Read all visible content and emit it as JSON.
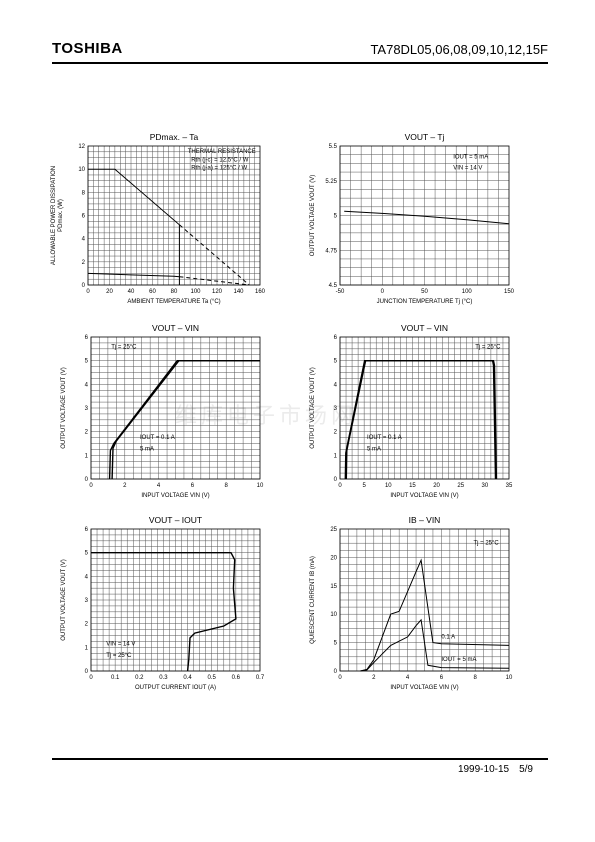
{
  "header": {
    "brand": "TOSHIBA",
    "part_number": "TA78DL05,06,08,09,10,12,15F"
  },
  "footer": {
    "date": "1999-10-15",
    "page": "5/9"
  },
  "watermark": "维库电子市场网",
  "chart_data": [
    {
      "id": "pd",
      "type": "line",
      "title": "PDmax. – Ta",
      "xlabel": "AMBIENT TEMPERATURE Ta (°C)",
      "ylabel_lines": [
        "ALLOWABLE POWER DISSIPATION",
        "PDmax. (W)"
      ],
      "xlim": [
        0,
        160
      ],
      "ylim": [
        0,
        12
      ],
      "xticks": [
        0,
        20,
        40,
        60,
        80,
        100,
        120,
        140,
        160
      ],
      "yticks": [
        0,
        2,
        4,
        6,
        8,
        10,
        12
      ],
      "annotations": [
        "THERMAL RESISTANCE",
        "Rth (j-c) = 12.5°C / W",
        "Rth (j-a) = 125°C / W"
      ],
      "series": [
        {
          "dash": false,
          "w": 1,
          "points": [
            [
              0,
              10
            ],
            [
              25,
              10
            ],
            [
              85,
              5.2
            ],
            [
              85,
              0
            ]
          ]
        },
        {
          "dash": true,
          "w": 1,
          "points": [
            [
              85,
              5.2
            ],
            [
              150,
              0
            ]
          ]
        },
        {
          "dash": false,
          "w": 1,
          "points": [
            [
              0,
              1
            ],
            [
              80,
              0.75
            ],
            [
              85,
              0.72
            ]
          ]
        },
        {
          "dash": true,
          "w": 1,
          "points": [
            [
              85,
              0.72
            ],
            [
              150,
              0
            ]
          ]
        }
      ]
    },
    {
      "id": "vt",
      "type": "line",
      "title": "VOUT – Tj",
      "xlabel": "JUNCTION TEMPERATURE Tj (°C)",
      "ylabel_lines": [
        "OUTPUT VOLTAGE VOUT (V)"
      ],
      "xlim": [
        -50,
        150
      ],
      "ylim": [
        4.5,
        5.5
      ],
      "xticks": [
        -50,
        0,
        50,
        100,
        150
      ],
      "yticks": [
        4.5,
        4.75,
        5.0,
        5.25,
        5.5
      ],
      "annotations": [
        "IOUT = 5 mA",
        "VIN = 14 V"
      ],
      "series": [
        {
          "dash": false,
          "w": 1,
          "points": [
            [
              -45,
              5.03
            ],
            [
              0,
              5.015
            ],
            [
              50,
              4.995
            ],
            [
              100,
              4.97
            ],
            [
              150,
              4.94
            ]
          ]
        }
      ]
    },
    {
      "id": "vvin1",
      "type": "line",
      "title": "VOUT – VIN",
      "xlabel": "INPUT VOLTAGE VIN (V)",
      "ylabel_lines": [
        "OUTPUT VOLTAGE VOUT (V)"
      ],
      "xlim": [
        0,
        10
      ],
      "ylim": [
        0,
        6
      ],
      "xticks": [
        0,
        2.0,
        4.0,
        6.0,
        8.0,
        10
      ],
      "yticks": [
        0,
        1,
        2,
        3,
        4,
        5,
        6
      ],
      "annotations": [
        "Tj = 25°C",
        "IOUT = 0.1 A",
        "5 mA"
      ],
      "series": [
        {
          "dash": false,
          "w": 1.4,
          "points": [
            [
              1.25,
              0
            ],
            [
              1.3,
              1.3
            ],
            [
              1.5,
              1.6
            ],
            [
              5.2,
              5
            ],
            [
              10,
              5
            ]
          ]
        },
        {
          "dash": false,
          "w": 1.4,
          "points": [
            [
              1.1,
              0
            ],
            [
              1.15,
              1.2
            ],
            [
              1.35,
              1.5
            ],
            [
              5.1,
              5
            ],
            [
              10,
              5
            ]
          ]
        }
      ]
    },
    {
      "id": "vvin2",
      "type": "line",
      "title": "VOUT – VIN",
      "xlabel": "INPUT VOLTAGE VIN (V)",
      "ylabel_lines": [
        "OUTPUT VOLTAGE VOUT (V)"
      ],
      "xlim": [
        0,
        35
      ],
      "ylim": [
        0,
        6
      ],
      "xticks": [
        0,
        5,
        10,
        15,
        20,
        25,
        30,
        35
      ],
      "yticks": [
        0,
        1,
        2,
        3,
        4,
        5,
        6
      ],
      "annotations": [
        "Tj = 25°C",
        "IOUT = 0.1 A",
        "5 mA"
      ],
      "series": [
        {
          "dash": false,
          "w": 1.4,
          "points": [
            [
              1.3,
              0
            ],
            [
              1.4,
              1.2
            ],
            [
              1.8,
              1.6
            ],
            [
              5.3,
              5
            ],
            [
              31.8,
              5
            ],
            [
              32,
              4.8
            ],
            [
              32.4,
              0
            ]
          ]
        },
        {
          "dash": false,
          "w": 1.4,
          "points": [
            [
              1.1,
              0
            ],
            [
              1.2,
              1.1
            ],
            [
              1.6,
              1.5
            ],
            [
              5.1,
              5
            ],
            [
              31.6,
              5
            ],
            [
              31.8,
              4.8
            ],
            [
              32.2,
              0
            ]
          ]
        }
      ]
    },
    {
      "id": "vio",
      "type": "line",
      "title": "VOUT – IOUT",
      "xlabel": "OUTPUT CURRENT IOUT (A)",
      "ylabel_lines": [
        "OUTPUT VOLTAGE VOUT (V)"
      ],
      "xlim": [
        0,
        0.7
      ],
      "ylim": [
        0,
        6
      ],
      "xticks": [
        0,
        0.1,
        0.2,
        0.3,
        0.4,
        0.5,
        0.6,
        0.7
      ],
      "yticks": [
        0,
        1,
        2,
        3,
        4,
        5,
        6
      ],
      "annotations": [
        "VIN = 14 V",
        "Tj = 25°C"
      ],
      "series": [
        {
          "dash": false,
          "w": 1.4,
          "points": [
            [
              0,
              5
            ],
            [
              0.58,
              5
            ],
            [
              0.595,
              4.7
            ],
            [
              0.59,
              3.5
            ],
            [
              0.6,
              2.2
            ],
            [
              0.55,
              1.9
            ],
            [
              0.43,
              1.6
            ],
            [
              0.41,
              1.4
            ],
            [
              0.405,
              0.5
            ],
            [
              0.4,
              0
            ]
          ]
        }
      ]
    },
    {
      "id": "ib",
      "type": "line",
      "title": "IB – VIN",
      "xlabel": "INPUT VOLTAGE VIN (V)",
      "ylabel_lines": [
        "QUIESCENT CURRENT IB (mA)"
      ],
      "xlim": [
        0,
        10
      ],
      "ylim": [
        0,
        25
      ],
      "xticks": [
        0,
        2,
        4,
        6,
        8,
        10
      ],
      "yticks": [
        0,
        5,
        10,
        15,
        20,
        25
      ],
      "annotations": [
        "Tj = 25°C",
        "0.1 A",
        "IOUT = 5 mA"
      ],
      "series": [
        {
          "dash": false,
          "w": 1,
          "points": [
            [
              1.2,
              0
            ],
            [
              1.6,
              0.3
            ],
            [
              2,
              2
            ],
            [
              3,
              10
            ],
            [
              3.5,
              10.5
            ],
            [
              4.5,
              17.5
            ],
            [
              4.8,
              19.5
            ],
            [
              5.5,
              5
            ],
            [
              6,
              4.8
            ],
            [
              10,
              4.5
            ]
          ]
        },
        {
          "dash": false,
          "w": 1,
          "points": [
            [
              1.2,
              0
            ],
            [
              1.6,
              0.2
            ],
            [
              2,
              1.5
            ],
            [
              3,
              4.5
            ],
            [
              4,
              6
            ],
            [
              4.5,
              8
            ],
            [
              4.8,
              9
            ],
            [
              5.2,
              1
            ],
            [
              6,
              0.6
            ],
            [
              10,
              0.5
            ]
          ]
        }
      ]
    }
  ]
}
